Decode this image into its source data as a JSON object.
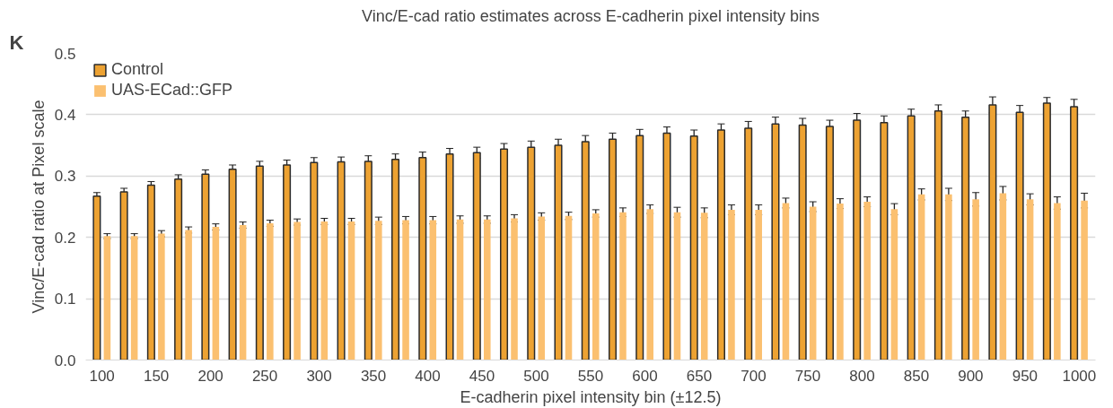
{
  "chart_data": {
    "type": "bar",
    "title": "Vinc/E-cad ratio estimates across E-cadherin pixel intensity bins",
    "xlabel": "E-cadherin pixel intensity bin (±12.5)",
    "ylabel": "Vinc/E-cad ratio at Pixel scale",
    "annotations": [
      "K"
    ],
    "categories": [
      "100",
      null,
      "150",
      null,
      "200",
      null,
      "250",
      null,
      "300",
      null,
      "350",
      null,
      "400",
      null,
      "450",
      null,
      "500",
      null,
      "550",
      null,
      "600",
      null,
      "650",
      null,
      "700",
      null,
      "750",
      null,
      "800",
      null,
      "850",
      null,
      "900",
      null,
      "950",
      null,
      "1000"
    ],
    "series": [
      {
        "name": "Control",
        "color": "#eda232",
        "values": [
          0.267,
          0.274,
          0.285,
          0.295,
          0.303,
          0.311,
          0.316,
          0.318,
          0.322,
          0.323,
          0.324,
          0.327,
          0.33,
          0.336,
          0.338,
          0.344,
          0.347,
          0.35,
          0.356,
          0.36,
          0.366,
          0.37,
          0.365,
          0.375,
          0.378,
          0.385,
          0.383,
          0.381,
          0.391,
          0.387,
          0.398,
          0.406,
          0.396,
          0.416,
          0.404,
          0.419,
          0.413
        ],
        "errors": [
          0.006,
          0.006,
          0.006,
          0.007,
          0.007,
          0.007,
          0.008,
          0.008,
          0.008,
          0.008,
          0.009,
          0.009,
          0.009,
          0.009,
          0.009,
          0.009,
          0.01,
          0.01,
          0.01,
          0.01,
          0.01,
          0.01,
          0.01,
          0.01,
          0.011,
          0.011,
          0.011,
          0.01,
          0.011,
          0.011,
          0.011,
          0.01,
          0.01,
          0.013,
          0.011,
          0.009,
          0.012
        ]
      },
      {
        "name": "UAS-ECad::GFP",
        "color": "#fbc070",
        "values": [
          0.202,
          0.202,
          0.206,
          0.212,
          0.217,
          0.22,
          0.223,
          0.225,
          0.226,
          0.226,
          0.227,
          0.228,
          0.228,
          0.229,
          0.229,
          0.231,
          0.234,
          0.235,
          0.239,
          0.241,
          0.246,
          0.241,
          0.24,
          0.245,
          0.245,
          0.256,
          0.25,
          0.255,
          0.258,
          0.246,
          0.27,
          0.27,
          0.262,
          0.272,
          0.262,
          0.256,
          0.26
        ],
        "errors": [
          0.004,
          0.004,
          0.005,
          0.005,
          0.005,
          0.005,
          0.005,
          0.005,
          0.005,
          0.005,
          0.006,
          0.006,
          0.006,
          0.006,
          0.006,
          0.006,
          0.006,
          0.006,
          0.006,
          0.007,
          0.007,
          0.008,
          0.008,
          0.008,
          0.008,
          0.008,
          0.008,
          0.008,
          0.008,
          0.009,
          0.009,
          0.01,
          0.011,
          0.011,
          0.009,
          0.01,
          0.012
        ]
      }
    ],
    "ylim": [
      0,
      0.5
    ],
    "yticks": [
      {
        "value": 0,
        "label": "0.0"
      },
      0.1,
      0.2,
      0.3,
      0.4,
      0.5
    ],
    "grid": "y",
    "legend": "top left"
  }
}
